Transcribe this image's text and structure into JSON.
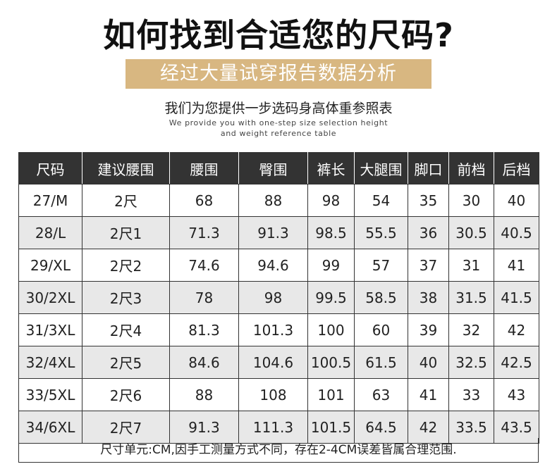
{
  "title": "如何找到合适您的尺码?",
  "banner": "经过大量试穿报告数据分析",
  "subtitle": "我们为您提供一步选码身高体重参照表",
  "english": [
    "We provide you with one-step size selection height",
    "and weight reference table"
  ],
  "table": {
    "headers": [
      "尺码",
      "建议腰围",
      "腰围",
      "臀围",
      "裤长",
      "大腿围",
      "脚口",
      "前档",
      "后档"
    ],
    "rows": [
      [
        "27/M",
        "2尺",
        "68",
        "88",
        "98",
        "54",
        "35",
        "30",
        "40"
      ],
      [
        "28/L",
        "2尺1",
        "71.3",
        "91.3",
        "98.5",
        "55.5",
        "36",
        "30.5",
        "40.5"
      ],
      [
        "29/XL",
        "2尺2",
        "74.6",
        "94.6",
        "99",
        "57",
        "37",
        "31",
        "41"
      ],
      [
        "30/2XL",
        "2尺3",
        "78",
        "98",
        "99.5",
        "58.5",
        "38",
        "31.5",
        "41.5"
      ],
      [
        "31/3XL",
        "2尺4",
        "81.3",
        "101.3",
        "100",
        "60",
        "39",
        "32",
        "42"
      ],
      [
        "32/4XL",
        "2尺5",
        "84.6",
        "104.6",
        "100.5",
        "61.5",
        "40",
        "32.5",
        "42.5"
      ],
      [
        "33/5XL",
        "2尺6",
        "88",
        "108",
        "101",
        "63",
        "41",
        "33",
        "43"
      ],
      [
        "34/6XL",
        "2尺7",
        "91.3",
        "111.3",
        "101.5",
        "64.5",
        "42",
        "33.5",
        "43.5"
      ]
    ]
  },
  "footnote": "尺寸单元:CM,因手工测量方式不同，存在2-4CM误差皆属合理范围.",
  "colors": {
    "banner": "#d8b781",
    "header": "#333333",
    "stripe": "#e8e8e8"
  }
}
